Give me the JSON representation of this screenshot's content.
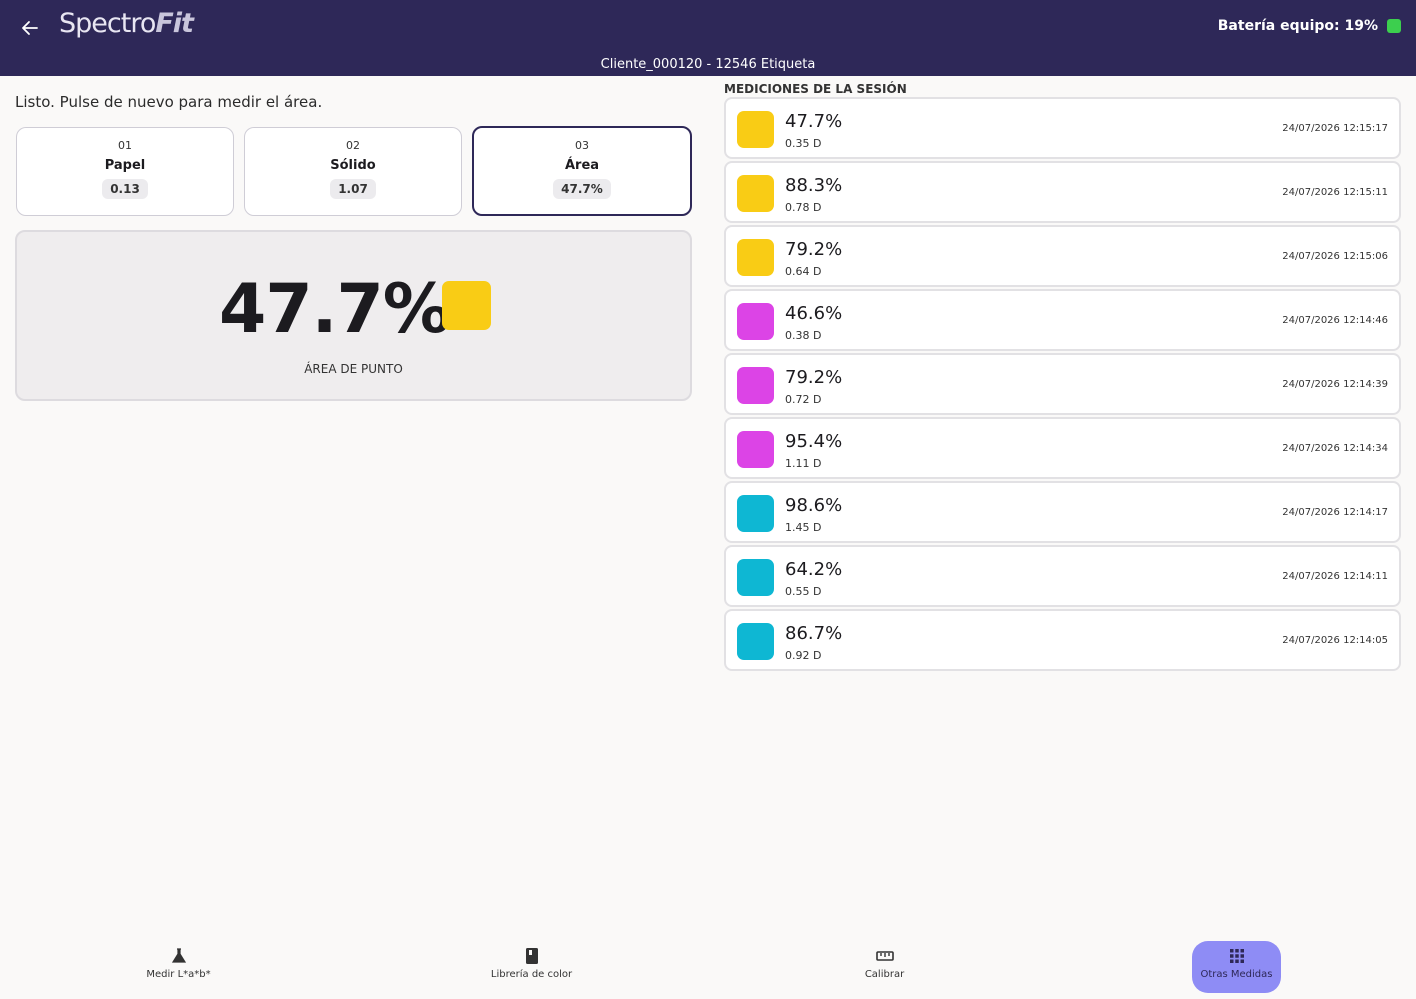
{
  "header": {
    "back_icon": "arrow-left-icon",
    "logo_part1": "Spectro",
    "logo_part2": "Fit",
    "battery_label": "Batería equipo: 19%",
    "battery_color": "#3ccf4e",
    "subtitle": "Cliente_000120 - 12546 Etiqueta"
  },
  "status_text": "Listo. Pulse de nuevo para medir el área.",
  "steps": [
    {
      "num": "01",
      "name": "Papel",
      "value": "0.13"
    },
    {
      "num": "02",
      "name": "Sólido",
      "value": "1.07"
    },
    {
      "num": "03",
      "name": "Área",
      "value": "47.7%"
    }
  ],
  "result": {
    "value": "47.7%",
    "swatch_color": "#f9cc15",
    "label": "ÁREA DE PUNTO"
  },
  "session": {
    "title": "MEDICIONES DE LA SESIÓN",
    "items": [
      {
        "pct": "47.7%",
        "density": "0.35 D",
        "time": "24/07/2026 12:15:17",
        "color": "#f9cc15"
      },
      {
        "pct": "88.3%",
        "density": "0.78 D",
        "time": "24/07/2026 12:15:11",
        "color": "#f9cc15"
      },
      {
        "pct": "79.2%",
        "density": "0.64 D",
        "time": "24/07/2026 12:15:06",
        "color": "#f9cc15"
      },
      {
        "pct": "46.6%",
        "density": "0.38 D",
        "time": "24/07/2026 12:14:46",
        "color": "#dc44e6"
      },
      {
        "pct": "79.2%",
        "density": "0.72 D",
        "time": "24/07/2026 12:14:39",
        "color": "#dc44e6"
      },
      {
        "pct": "95.4%",
        "density": "1.11 D",
        "time": "24/07/2026 12:14:34",
        "color": "#dc44e6"
      },
      {
        "pct": "98.6%",
        "density": "1.45 D",
        "time": "24/07/2026 12:14:17",
        "color": "#0eb7d3"
      },
      {
        "pct": "64.2%",
        "density": "0.55 D",
        "time": "24/07/2026 12:14:11",
        "color": "#0eb7d3"
      },
      {
        "pct": "86.7%",
        "density": "0.92 D",
        "time": "24/07/2026 12:14:05",
        "color": "#0eb7d3"
      }
    ]
  },
  "nav": [
    {
      "label": "Medir L*a*b*",
      "icon": "flask-icon"
    },
    {
      "label": "Librería de color",
      "icon": "book-icon"
    },
    {
      "label": "Calibrar",
      "icon": "ruler-icon"
    },
    {
      "label": "Otras Medidas",
      "icon": "grid-icon"
    }
  ]
}
